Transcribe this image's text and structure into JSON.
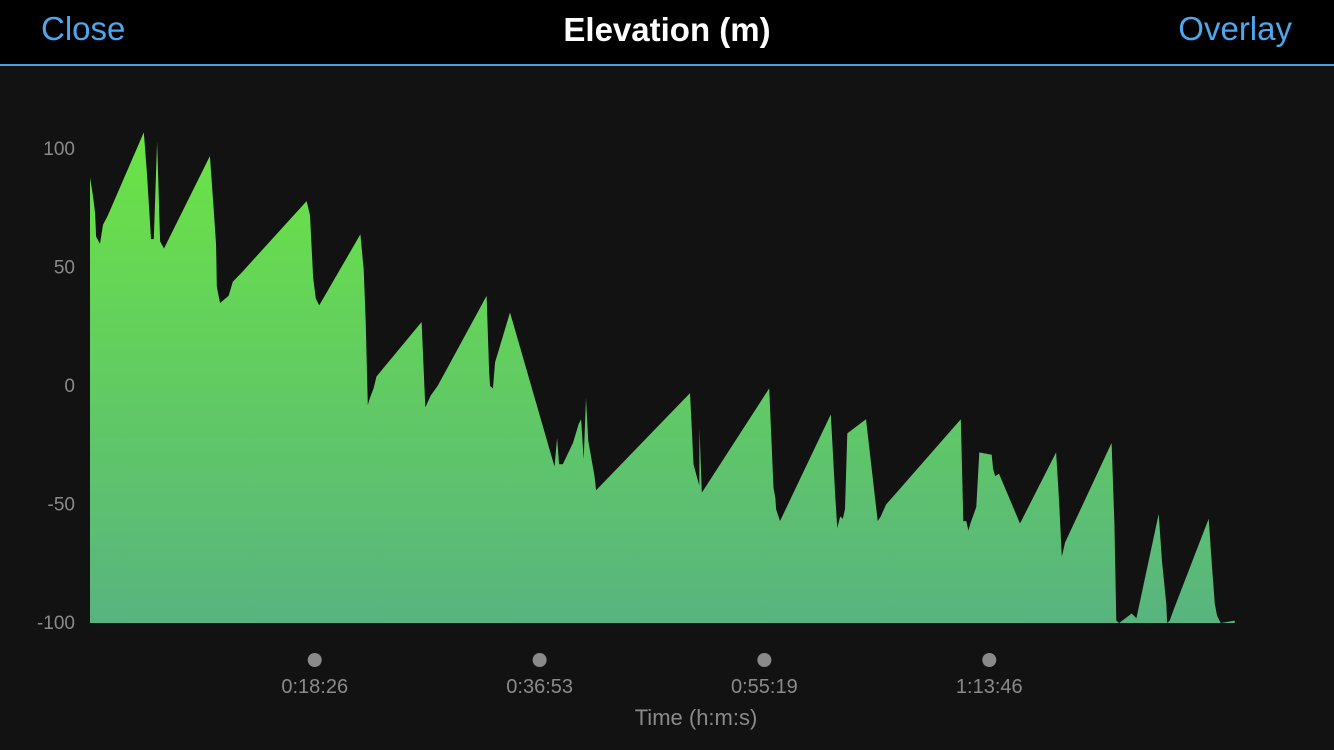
{
  "header": {
    "close_label": "Close",
    "title": "Elevation (m)",
    "overlay_label": "Overlay"
  },
  "colors": {
    "accent": "#4ea6ec",
    "area_top": "#6be444",
    "area_bottom": "#58b47f"
  },
  "chart_data": {
    "type": "area",
    "title": "Elevation (m)",
    "xlabel": "Time (h:m:s)",
    "ylabel": "",
    "xlim": [
      0,
      5970
    ],
    "ylim": [
      -100,
      100
    ],
    "yticks": [
      100,
      50,
      0,
      -50,
      -100
    ],
    "xticks": [
      {
        "t": 1106,
        "label": "0:18:26"
      },
      {
        "t": 2213,
        "label": "0:36:53"
      },
      {
        "t": 3319,
        "label": "0:55:19"
      },
      {
        "t": 4426,
        "label": "1:13:46"
      }
    ],
    "grid": false,
    "legend": "none",
    "series": [
      {
        "x": [
          0,
          15,
          25,
          30,
          49,
          64,
          88,
          265,
          280,
          300,
          314,
          330,
          345,
          364,
          590,
          611,
          620,
          621,
          624,
          640,
          682,
          703,
          748,
          1066,
          1083,
          1098,
          1111,
          1128,
          1331,
          1347,
          1357,
          1367,
          1378,
          1396,
          1410,
          1632,
          1650,
          1656,
          1677,
          1711,
          1952,
          1964,
          1969,
          1983,
          1994,
          2067,
          2286,
          2299,
          2309,
          2327,
          2377,
          2405,
          2417,
          2430,
          2441,
          2452,
          2483,
          2491,
          2953,
          2962,
          2970,
          2986,
          2999,
          3000,
          3011,
          3019,
          3343,
          3364,
          3373,
          3377,
          3396,
          3646,
          3668,
          3678,
          3692,
          3705,
          3716,
          3727,
          3819,
          3877,
          3892,
          3897,
          3918,
          4286,
          4298,
          4313,
          4323,
          4333,
          4362,
          4377,
          4438,
          4445,
          4455,
          4474,
          4577,
          4755,
          4769,
          4783,
          4799,
          5028,
          5042,
          5051,
          5065,
          5127,
          5150,
          5260,
          5276,
          5297,
          5301,
          5314,
          5335,
          5506,
          5521,
          5536,
          5547,
          5565,
          5634
        ],
        "y": [
          88,
          80,
          73,
          63,
          60,
          68,
          72,
          107,
          90,
          62,
          62,
          103,
          61,
          58,
          97,
          72,
          60,
          57,
          42,
          35,
          38,
          44,
          48,
          78,
          72,
          46,
          37,
          34,
          64,
          49,
          27,
          -8,
          -5,
          -1,
          4,
          27,
          -9,
          -8,
          -4,
          0,
          38,
          6,
          0,
          -1,
          10,
          31,
          -34,
          -22,
          -33,
          -33,
          -24,
          -16,
          -14,
          -31,
          -5,
          -23,
          -38,
          -44,
          -3,
          -18,
          -33,
          -38,
          -42,
          -18,
          -45,
          -44,
          -1,
          -43,
          -47,
          -52,
          -57,
          -12,
          -47,
          -60,
          -55,
          -56,
          -52,
          -20,
          -14,
          -57,
          -55,
          -54,
          -50,
          -14,
          -57,
          -57,
          -61,
          -58,
          -51,
          -28,
          -29,
          -35,
          -38,
          -37,
          -58,
          -28,
          -48,
          -72,
          -66,
          -24,
          -58,
          -99,
          -100,
          -96,
          -98,
          -54,
          -74,
          -92,
          -101,
          -99,
          -94,
          -56,
          -75,
          -92,
          -97,
          -101,
          -99
        ]
      }
    ]
  }
}
